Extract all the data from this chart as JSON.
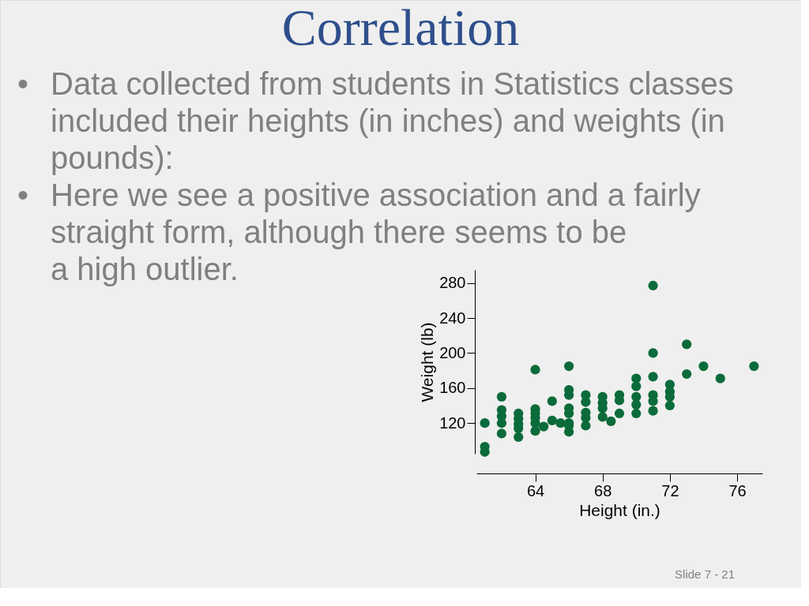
{
  "chart_data": {
    "type": "scatter",
    "title": "Correlation",
    "xlabel": "Height (in.)",
    "ylabel": "Weight (lb)",
    "xlim": [
      60.5,
      77.5
    ],
    "ylim": [
      85,
      295
    ],
    "xticks": [
      64,
      68,
      72,
      76
    ],
    "yticks": [
      120,
      160,
      200,
      240,
      280
    ],
    "grid": false,
    "marker": "circle",
    "series": [
      {
        "color": "#0b6b3a",
        "x": [
          61,
          61,
          61,
          62,
          62,
          62,
          62,
          62,
          63,
          63,
          63,
          63,
          63,
          64,
          64,
          64,
          64,
          64,
          64,
          64.5,
          65,
          65,
          65.5,
          66,
          66,
          66,
          66,
          66,
          66,
          66,
          66,
          67,
          67,
          67,
          67,
          67,
          68,
          68,
          68,
          68,
          68.5,
          69,
          69,
          69,
          70,
          70,
          70,
          70,
          70,
          71,
          71,
          71,
          71,
          71,
          71,
          72,
          72,
          72,
          72,
          73,
          73,
          74,
          75,
          77
        ],
        "values": [
          120,
          93,
          87,
          150,
          135,
          128,
          120,
          108,
          131,
          125,
          119,
          114,
          104,
          181,
          136,
          131,
          126,
          120,
          111,
          116,
          145,
          123,
          120,
          185,
          158,
          152,
          137,
          131,
          120,
          117,
          110,
          152,
          144,
          132,
          126,
          117,
          150,
          143,
          137,
          127,
          122,
          152,
          146,
          131,
          171,
          162,
          150,
          141,
          131,
          277,
          200,
          173,
          152,
          145,
          134,
          164,
          156,
          150,
          140,
          210,
          176,
          185,
          171,
          185
        ]
      }
    ],
    "annotations": [
      "• Data collected from students in Statistics classes\nincluded their heights (in inches) and weights (in\npounds):",
      "• Here we see a positive association and a fairly\nstraight form, although there seems to be\na high outlier.",
      "Slide 7 - 21"
    ]
  }
}
